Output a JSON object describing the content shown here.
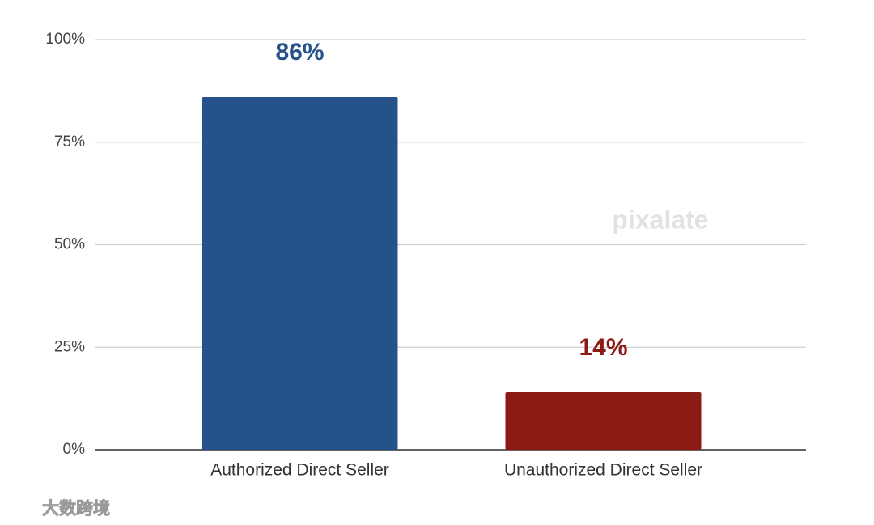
{
  "chart_data": {
    "type": "bar",
    "categories": [
      "Authorized Direct Seller",
      "Unauthorized Direct Seller"
    ],
    "values": [
      86,
      14
    ],
    "value_labels": [
      "86%",
      "14%"
    ],
    "colors": [
      "#26528c",
      "#8c1b13"
    ],
    "ylim": [
      0,
      100
    ],
    "yticks": [
      {
        "value": 0,
        "label": "0%"
      },
      {
        "value": 25,
        "label": "25%"
      },
      {
        "value": 50,
        "label": "50%"
      },
      {
        "value": 75,
        "label": "75%"
      },
      {
        "value": 100,
        "label": "100%"
      }
    ],
    "grid": true,
    "watermark": "pixalate",
    "source_watermark": "大数跨境"
  }
}
